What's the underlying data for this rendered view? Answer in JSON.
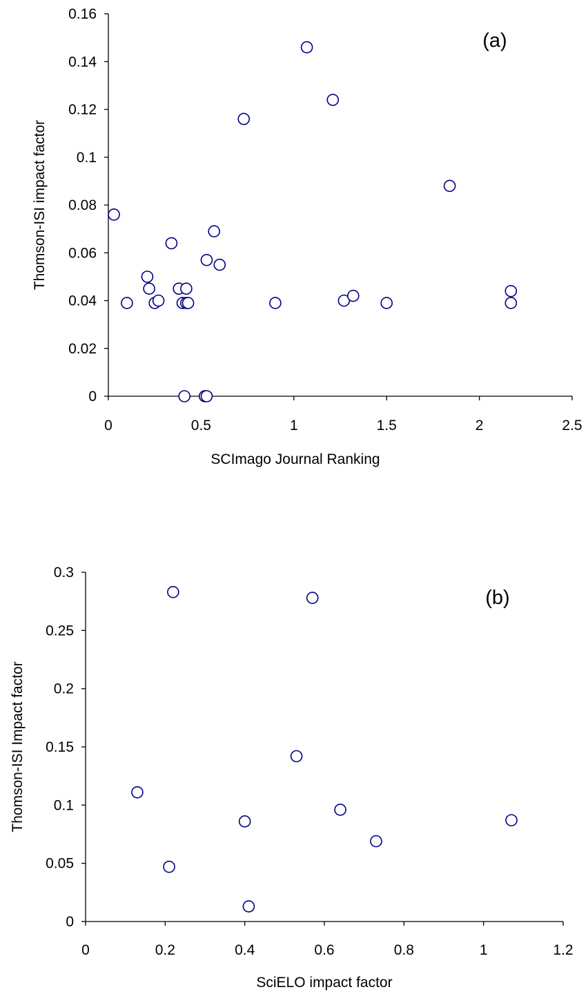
{
  "chart_data": [
    {
      "type": "scatter",
      "panel_label": "(a)",
      "xlabel": "SCImago Journal Ranking",
      "ylabel": "Thomson-ISI impact factor",
      "xlim": [
        0,
        2.5
      ],
      "ylim": [
        0,
        0.16
      ],
      "x_ticks": [
        "0",
        "0.5",
        "1",
        "1.5",
        "2",
        "2.5"
      ],
      "y_ticks": [
        "0",
        "0.02",
        "0.04",
        "0.06",
        "0.08",
        "0.1",
        "0.12",
        "0.14",
        "0.16"
      ],
      "grid": false,
      "marker_color": "#000080",
      "points": [
        {
          "x": 0.03,
          "y": 0.076
        },
        {
          "x": 0.1,
          "y": 0.039
        },
        {
          "x": 0.21,
          "y": 0.05
        },
        {
          "x": 0.22,
          "y": 0.045
        },
        {
          "x": 0.25,
          "y": 0.039
        },
        {
          "x": 0.27,
          "y": 0.04
        },
        {
          "x": 0.34,
          "y": 0.064
        },
        {
          "x": 0.38,
          "y": 0.045
        },
        {
          "x": 0.4,
          "y": 0.039
        },
        {
          "x": 0.42,
          "y": 0.039
        },
        {
          "x": 0.42,
          "y": 0.045
        },
        {
          "x": 0.43,
          "y": 0.039
        },
        {
          "x": 0.41,
          "y": 0.0
        },
        {
          "x": 0.52,
          "y": 0.0
        },
        {
          "x": 0.53,
          "y": 0.0
        },
        {
          "x": 0.53,
          "y": 0.057
        },
        {
          "x": 0.57,
          "y": 0.069
        },
        {
          "x": 0.6,
          "y": 0.055
        },
        {
          "x": 0.73,
          "y": 0.116
        },
        {
          "x": 0.9,
          "y": 0.039
        },
        {
          "x": 1.07,
          "y": 0.146
        },
        {
          "x": 1.21,
          "y": 0.124
        },
        {
          "x": 1.27,
          "y": 0.04
        },
        {
          "x": 1.32,
          "y": 0.042
        },
        {
          "x": 1.5,
          "y": 0.039
        },
        {
          "x": 1.84,
          "y": 0.088
        },
        {
          "x": 2.17,
          "y": 0.039
        },
        {
          "x": 2.17,
          "y": 0.044
        }
      ]
    },
    {
      "type": "scatter",
      "panel_label": "(b)",
      "xlabel": "SciELO impact factor",
      "ylabel": "Thomson-ISI Impact factor",
      "xlim": [
        0,
        1.2
      ],
      "ylim": [
        0,
        0.3
      ],
      "x_ticks": [
        "0",
        "0.2",
        "0.4",
        "0.6",
        "0.8",
        "1",
        "1.2"
      ],
      "y_ticks": [
        "0",
        "0.05",
        "0.1",
        "0.15",
        "0.2",
        "0.25",
        "0.3"
      ],
      "grid": false,
      "marker_color": "#000080",
      "points": [
        {
          "x": 0.13,
          "y": 0.111
        },
        {
          "x": 0.21,
          "y": 0.047
        },
        {
          "x": 0.22,
          "y": 0.283
        },
        {
          "x": 0.4,
          "y": 0.086
        },
        {
          "x": 0.41,
          "y": 0.013
        },
        {
          "x": 0.53,
          "y": 0.142
        },
        {
          "x": 0.57,
          "y": 0.278
        },
        {
          "x": 0.64,
          "y": 0.096
        },
        {
          "x": 0.73,
          "y": 0.069
        },
        {
          "x": 1.07,
          "y": 0.087
        }
      ]
    }
  ]
}
